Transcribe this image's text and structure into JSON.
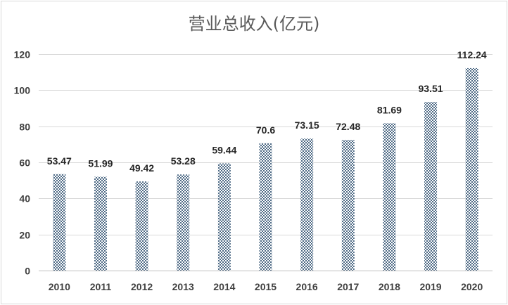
{
  "chart_data": {
    "type": "bar",
    "title": "营业总收入(亿元)",
    "xlabel": "",
    "ylabel": "",
    "categories": [
      "2010",
      "2011",
      "2012",
      "2013",
      "2014",
      "2015",
      "2016",
      "2017",
      "2018",
      "2019",
      "2020"
    ],
    "values": [
      53.47,
      51.99,
      49.42,
      53.28,
      59.44,
      70.6,
      73.15,
      72.48,
      81.69,
      93.51,
      112.24
    ],
    "value_labels": [
      "53.47",
      "51.99",
      "49.42",
      "53.28",
      "59.44",
      "70.6",
      "73.15",
      "72.48",
      "81.69",
      "93.51",
      "112.24"
    ],
    "ylim": [
      0,
      120
    ],
    "yticks": [
      0,
      20,
      40,
      60,
      80,
      100,
      120
    ],
    "grid": true,
    "legend": "none",
    "colors": {
      "bar": "#4f6b86",
      "grid": "#d9d9d9",
      "axis": "#bfbfbf"
    }
  }
}
